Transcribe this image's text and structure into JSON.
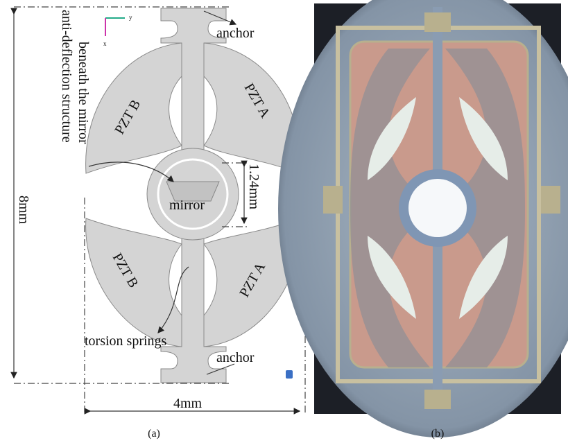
{
  "panel_a": {
    "anchor_top": "anchor",
    "anti_deflection": [
      "anti-deflection structure",
      "beneath the mirror"
    ],
    "pzt_b_top": "PZT B",
    "pzt_a_top": "PZT A",
    "mirror_diameter": "1.24mm",
    "mirror": "mirror",
    "height": "8mm",
    "pzt_b_bottom": "PZT B",
    "pzt_a_bottom": "PZT A",
    "torsion_springs": "torsion springs",
    "anchor_bottom": "anchor",
    "width": "4mm",
    "axis_y": "y",
    "axis_x": "x"
  },
  "captions": [
    "(a)",
    "(b)"
  ]
}
